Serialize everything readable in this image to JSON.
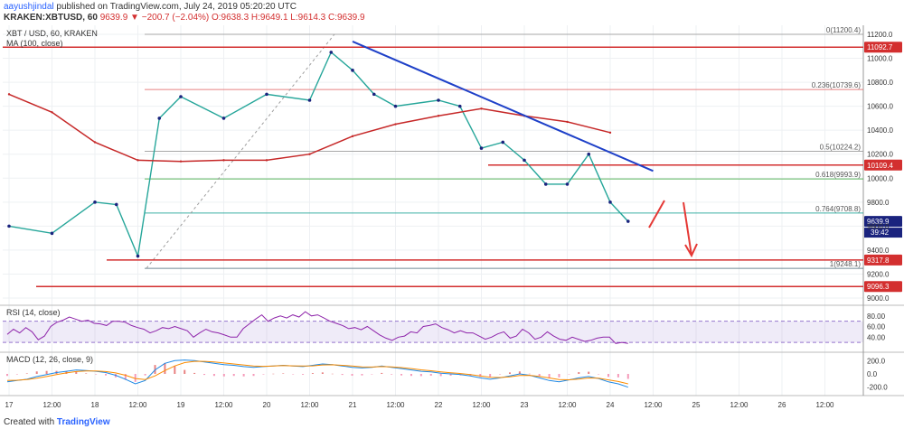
{
  "header": {
    "line1_user": "aayushjindal",
    "line1_rest": "published on TradingView.com, July 24, 2019 05:20:20 UTC",
    "line2_symbol": "KRAKEN:XBTUSD, 60",
    "line2_values": "9639.9 ▼ −200.7 (−2.04%) O:9638.3 H:9649.1 L:9614.3 C:9639.9"
  },
  "legend": {
    "symbol": "XBT / USD, 60, KRAKEN",
    "ma": "MA (100, close)"
  },
  "footer": {
    "prefix": "Created with",
    "brand": "TradingView"
  },
  "price_axis": {
    "ticks": [
      "11200.0",
      "11000.0",
      "10800.0",
      "10600.0",
      "10400.0",
      "10200.0",
      "10000.0",
      "9800.0",
      "9600.0",
      "9400.0",
      "9200.0",
      "9000.0"
    ],
    "tick_values": [
      11200,
      11000,
      10800,
      10600,
      10400,
      10200,
      10000,
      9800,
      9600,
      9400,
      9200,
      9000
    ]
  },
  "time_axis": {
    "labels": [
      "17",
      "12:00",
      "18",
      "12:00",
      "19",
      "12:00",
      "20",
      "12:00",
      "21",
      "12:00",
      "22",
      "12:00",
      "23",
      "12:00",
      "24",
      "12:00",
      "25",
      "12:00",
      "26",
      "12:00"
    ]
  },
  "chart_data": {
    "type": "line",
    "title": "XBT / USD, 60, KRAKEN",
    "price_range": [
      9000,
      11200
    ],
    "price_series": {
      "name": "XBT / USD",
      "x": [
        "17 00:00",
        "17 12:00",
        "18 00:00",
        "18 06:00",
        "18 12:00",
        "18 18:00",
        "19 00:00",
        "19 12:00",
        "20 00:00",
        "20 12:00",
        "20 18:00",
        "21 00:00",
        "21 06:00",
        "21 12:00",
        "22 00:00",
        "22 06:00",
        "22 12:00",
        "22 18:00",
        "23 00:00",
        "23 06:00",
        "23 12:00",
        "23 18:00",
        "24 00:00",
        "24 05:00"
      ],
      "y": [
        9600,
        9540,
        9800,
        9780,
        9350,
        10500,
        10680,
        10500,
        10700,
        10650,
        11050,
        10900,
        10700,
        10600,
        10650,
        10600,
        10250,
        10300,
        10150,
        9950,
        9950,
        10200,
        9800,
        9640
      ]
    },
    "ma_series": {
      "name": "MA (100, close)",
      "x": [
        "17 00:00",
        "17 12:00",
        "18 00:00",
        "18 12:00",
        "19 00:00",
        "19 12:00",
        "20 00:00",
        "20 12:00",
        "21 00:00",
        "21 12:00",
        "22 00:00",
        "22 12:00",
        "23 00:00",
        "23 12:00",
        "24 00:00"
      ],
      "y": [
        10700,
        10550,
        10300,
        10150,
        10140,
        10150,
        10150,
        10200,
        10350,
        10450,
        10520,
        10580,
        10520,
        10470,
        10380
      ]
    },
    "levels": [
      {
        "label": "11092.7",
        "value": 11092.7,
        "color": "#d32f2f"
      },
      {
        "label": "10109.4",
        "value": 10109.4,
        "color": "#d32f2f"
      },
      {
        "label": "9317.8",
        "value": 9317.8,
        "color": "#d32f2f"
      },
      {
        "label": "9096.3",
        "value": 9096.3,
        "color": "#d32f2f"
      },
      {
        "label": "9639.9",
        "value": 9639.9,
        "color": "#1a237e"
      }
    ],
    "current_time_label": "39:42",
    "fib_levels": [
      {
        "label": "0(11200.4)",
        "value": 11200.4
      },
      {
        "label": "0.236(10739.6)",
        "value": 10739.6
      },
      {
        "label": "0.5(10224.2)",
        "value": 10224.2
      },
      {
        "label": "0.618(9993.9)",
        "value": 9993.9
      },
      {
        "label": "0.764(9708.8)",
        "value": 9708.8
      },
      {
        "label": "1(9248.1)",
        "value": 9248.1
      }
    ],
    "trendline": {
      "from": [
        "21 00:00",
        11140
      ],
      "to": [
        "24 12:00",
        10060
      ]
    },
    "rsi": {
      "label": "RSI (14, close)",
      "ticks": [
        "80.00",
        "60.00",
        "40.00"
      ],
      "tick_values": [
        80,
        60,
        40
      ],
      "range": [
        20,
        95
      ],
      "values": [
        45,
        55,
        48,
        58,
        50,
        35,
        42,
        60,
        68,
        72,
        78,
        74,
        70,
        72,
        66,
        65,
        62,
        70,
        70,
        68,
        62,
        58,
        55,
        48,
        52,
        58,
        56,
        60,
        56,
        52,
        40,
        48,
        55,
        50,
        48,
        44,
        40,
        40,
        56,
        65,
        74,
        82,
        70,
        76,
        80,
        76,
        82,
        78,
        88,
        80,
        82,
        76,
        70,
        66,
        62,
        56,
        58,
        54,
        60,
        52,
        44,
        38,
        34,
        40,
        42,
        50,
        48,
        60,
        62,
        65,
        58,
        54,
        48,
        52,
        48,
        48,
        42,
        36,
        40,
        46,
        50,
        38,
        42,
        55,
        48,
        36,
        40,
        50,
        42,
        36,
        34,
        40,
        36,
        32,
        34,
        38,
        40,
        40,
        28,
        30,
        28
      ]
    },
    "macd": {
      "label": "MACD (12, 26, close, 9)",
      "ticks": [
        "200.0",
        "0.0",
        "-200.0"
      ],
      "tick_values": [
        200,
        0,
        -200
      ],
      "range": [
        -300,
        300
      ],
      "macd_values": [
        -120,
        -100,
        -80,
        -40,
        -10,
        20,
        40,
        60,
        50,
        40,
        20,
        -20,
        -80,
        -150,
        -100,
        60,
        160,
        200,
        210,
        200,
        180,
        160,
        140,
        130,
        110,
        100,
        110,
        120,
        130,
        120,
        110,
        130,
        150,
        140,
        120,
        100,
        90,
        100,
        120,
        100,
        80,
        60,
        40,
        30,
        10,
        0,
        -10,
        -30,
        -60,
        -80,
        -60,
        -30,
        0,
        -20,
        -60,
        -100,
        -120,
        -90,
        -60,
        -40,
        -70,
        -120,
        -150,
        -200
      ],
      "signal_values": [
        -100,
        -95,
        -85,
        -65,
        -40,
        -10,
        15,
        35,
        45,
        45,
        35,
        15,
        -20,
        -70,
        -85,
        -30,
        50,
        120,
        170,
        190,
        190,
        180,
        165,
        150,
        135,
        120,
        115,
        118,
        125,
        122,
        118,
        122,
        135,
        138,
        130,
        118,
        105,
        103,
        110,
        106,
        95,
        80,
        62,
        48,
        32,
        18,
        5,
        -10,
        -30,
        -50,
        -55,
        -45,
        -25,
        -22,
        -38,
        -62,
        -85,
        -88,
        -78,
        -62,
        -66,
        -90,
        -115,
        -150
      ]
    }
  }
}
